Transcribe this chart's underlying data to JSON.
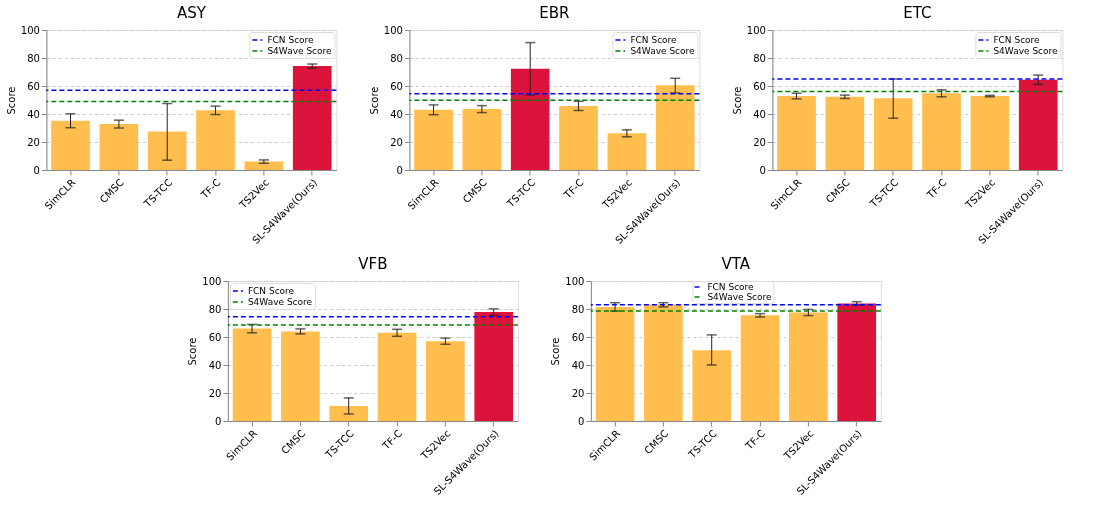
{
  "chart_data": [
    {
      "type": "bar",
      "title": "ASY",
      "ylabel": "Score",
      "categories": [
        "SimCLR",
        "CMSC",
        "TS-TCC",
        "TF-C",
        "TS2Vec",
        "SL-S4Wave(Ours)"
      ],
      "values": [
        35.2,
        32.8,
        27.5,
        42.6,
        6,
        74.2
      ],
      "errors": [
        5,
        2.8,
        [
          7,
          47.5
        ],
        3,
        1.2,
        1.5
      ],
      "colors": [
        "#ffbe4d",
        "#ffbe4d",
        "#ffbe4d",
        "#ffbe4d",
        "#ffbe4d",
        "#dc143c"
      ],
      "ylim": [
        0,
        100
      ],
      "yticks": [
        0,
        20,
        40,
        60,
        80,
        100
      ],
      "grid": "y",
      "legend": "top right",
      "ref_lines": [
        {
          "axis": "y",
          "value": 57,
          "label": "FCN Score",
          "color": "#0000ff",
          "line_style": "dashed"
        },
        {
          "axis": "y",
          "value": 49,
          "label": "S4Wave Score",
          "color": "#008000",
          "line_style": "dashed"
        }
      ]
    },
    {
      "type": "bar",
      "title": "EBR",
      "ylabel": "Score",
      "categories": [
        "SimCLR",
        "CMSC",
        "TS-TCC",
        "TF-C",
        "TS2Vec",
        "SL-S4Wave(Ours)"
      ],
      "values": [
        43,
        43.5,
        72.3,
        45.8,
        26.2,
        60.5
      ],
      "errors": [
        3.5,
        2.5,
        [
          53.5,
          91
        ],
        3.3,
        2.5,
        [
          55,
          65.5
        ]
      ],
      "colors": [
        "#ffbe4d",
        "#ffbe4d",
        "#dc143c",
        "#ffbe4d",
        "#ffbe4d",
        "#ffbe4d"
      ],
      "ylim": [
        0,
        100
      ],
      "yticks": [
        0,
        20,
        40,
        60,
        80,
        100
      ],
      "grid": "y",
      "legend": "top right",
      "ref_lines": [
        {
          "axis": "y",
          "value": 54.5,
          "label": "FCN Score",
          "color": "#0000ff",
          "line_style": "dashed"
        },
        {
          "axis": "y",
          "value": 49.8,
          "label": "S4Wave Score",
          "color": "#008000",
          "line_style": "dashed"
        }
      ]
    },
    {
      "type": "bar",
      "title": "ETC",
      "ylabel": "Score",
      "categories": [
        "SimCLR",
        "CMSC",
        "TS-TCC",
        "TF-C",
        "TS2Vec",
        "SL-S4Wave(Ours)"
      ],
      "values": [
        52.8,
        52.3,
        51.2,
        54.8,
        52.8,
        64.5
      ],
      "errors": [
        2,
        1.2,
        [
          37,
          65
        ],
        2.5,
        0.5,
        3.3
      ],
      "colors": [
        "#ffbe4d",
        "#ffbe4d",
        "#ffbe4d",
        "#ffbe4d",
        "#ffbe4d",
        "#dc143c"
      ],
      "ylim": [
        0,
        100
      ],
      "yticks": [
        0,
        20,
        40,
        60,
        80,
        100
      ],
      "grid": "y",
      "legend": "top right",
      "ref_lines": [
        {
          "axis": "y",
          "value": 65,
          "label": "FCN Score",
          "color": "#0000ff",
          "line_style": "dashed"
        },
        {
          "axis": "y",
          "value": 56,
          "label": "S4Wave Score",
          "color": "#008000",
          "line_style": "dashed"
        }
      ]
    },
    {
      "type": "bar",
      "title": "VFB",
      "ylabel": "Score",
      "categories": [
        "SimCLR",
        "CMSC",
        "TS-TCC",
        "TF-C",
        "TS2Vec",
        "SL-S4Wave(Ours)"
      ],
      "values": [
        66,
        64,
        10.8,
        63,
        57,
        77.8
      ],
      "errors": [
        3,
        1.8,
        [
          5,
          16.5
        ],
        2.5,
        2.2,
        2.3
      ],
      "colors": [
        "#ffbe4d",
        "#ffbe4d",
        "#ffbe4d",
        "#ffbe4d",
        "#ffbe4d",
        "#dc143c"
      ],
      "ylim": [
        0,
        100
      ],
      "yticks": [
        0,
        20,
        40,
        60,
        80,
        100
      ],
      "grid": "y",
      "legend": "top left",
      "ref_lines": [
        {
          "axis": "y",
          "value": 74.5,
          "label": "FCN Score",
          "color": "#0000ff",
          "line_style": "dashed"
        },
        {
          "axis": "y",
          "value": 68.5,
          "label": "S4Wave Score",
          "color": "#008000",
          "line_style": "dashed"
        }
      ]
    },
    {
      "type": "bar",
      "title": "VTA",
      "ylabel": "Score",
      "categories": [
        "SimCLR",
        "CMSC",
        "TS-TCC",
        "TF-C",
        "TS2Vec",
        "SL-S4Wave(Ours)"
      ],
      "values": [
        81.5,
        83,
        50.5,
        75.5,
        77.5,
        84
      ],
      "errors": [
        3,
        1.5,
        [
          40,
          61.5
        ],
        1.2,
        2.2,
        1.2
      ],
      "colors": [
        "#ffbe4d",
        "#ffbe4d",
        "#ffbe4d",
        "#ffbe4d",
        "#ffbe4d",
        "#dc143c"
      ],
      "ylim": [
        0,
        100
      ],
      "yticks": [
        0,
        20,
        40,
        60,
        80,
        100
      ],
      "grid": "y",
      "legend": "top",
      "ref_lines": [
        {
          "axis": "y",
          "value": 83,
          "label": "FCN Score",
          "color": "#0000ff",
          "line_style": "dashed"
        },
        {
          "axis": "y",
          "value": 78.5,
          "label": "S4Wave Score",
          "color": "#008000",
          "line_style": "dashed"
        }
      ]
    }
  ]
}
